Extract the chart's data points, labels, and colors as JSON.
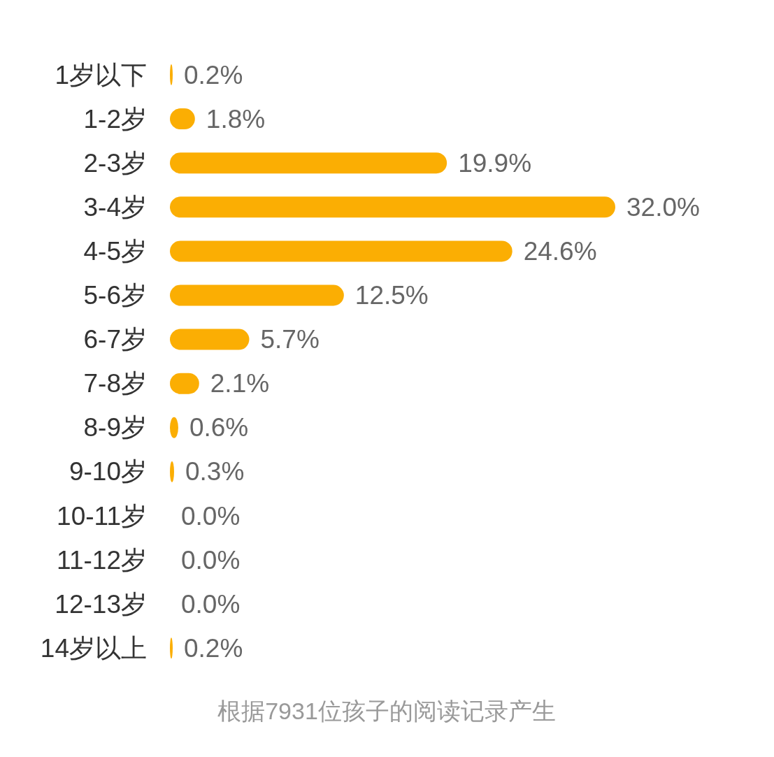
{
  "chart_data": {
    "type": "bar",
    "orientation": "horizontal",
    "categories": [
      "1岁以下",
      "1-2岁",
      "2-3岁",
      "3-4岁",
      "4-5岁",
      "5-6岁",
      "6-7岁",
      "7-8岁",
      "8-9岁",
      "9-10岁",
      "10-11岁",
      "11-12岁",
      "12-13岁",
      "14岁以上"
    ],
    "values": [
      0.2,
      1.8,
      19.9,
      32.0,
      24.6,
      12.5,
      5.7,
      2.1,
      0.6,
      0.3,
      0.0,
      0.0,
      0.0,
      0.2
    ],
    "value_labels": [
      "0.2%",
      "1.8%",
      "19.9%",
      "32.0%",
      "24.6%",
      "12.5%",
      "5.7%",
      "2.1%",
      "0.6%",
      "0.3%",
      "0.0%",
      "0.0%",
      "0.0%",
      "0.2%"
    ],
    "color": "#fbae03",
    "annotations": [
      "根据7931位孩子的阅读记录产生"
    ]
  }
}
